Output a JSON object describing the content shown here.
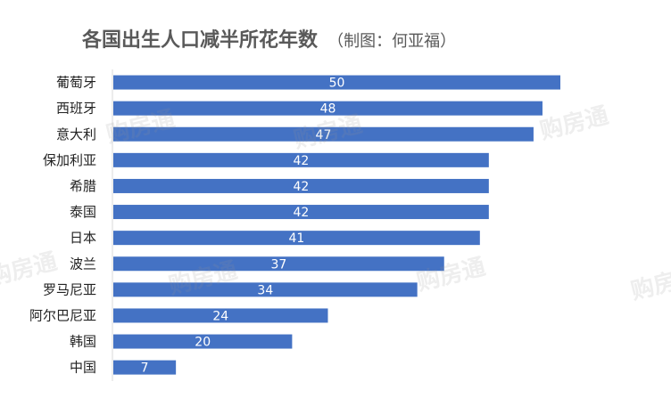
{
  "watermark_text": "购房通",
  "colors": {
    "bar": "#4472c4",
    "axis": "#d9d9d9",
    "title": "#595959"
  },
  "chart_data": {
    "type": "bar",
    "orientation": "horizontal",
    "title": "各国出生人口减半所花年数",
    "subtitle": "（制图：何亚福）",
    "xlabel": "",
    "ylabel": "",
    "xlim": [
      0,
      50
    ],
    "grid": false,
    "data_labels": true,
    "categories": [
      "葡萄牙",
      "西班牙",
      "意大利",
      "保加利亚",
      "希腊",
      "泰国",
      "日本",
      "波兰",
      "罗马尼亚",
      "阿尔巴尼亚",
      "韩国",
      "中国"
    ],
    "values": [
      50,
      48,
      47,
      42,
      42,
      42,
      41,
      37,
      34,
      24,
      20,
      7
    ]
  }
}
